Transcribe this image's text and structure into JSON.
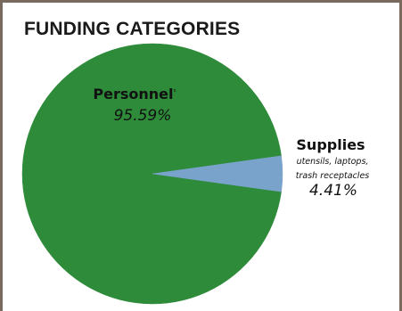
{
  "chart_data": {
    "type": "pie",
    "title": "FUNDING CATEGORIES",
    "slices": [
      {
        "label": "Personnel",
        "marker": "¹",
        "value": 95.59,
        "display": "95.59%",
        "color": "#2e8b3a"
      },
      {
        "label": "Supplies",
        "description": [
          "utensils, laptops,",
          "trash receptacles"
        ],
        "value": 4.41,
        "display": "4.41%",
        "color": "#7aa3cc"
      }
    ]
  }
}
